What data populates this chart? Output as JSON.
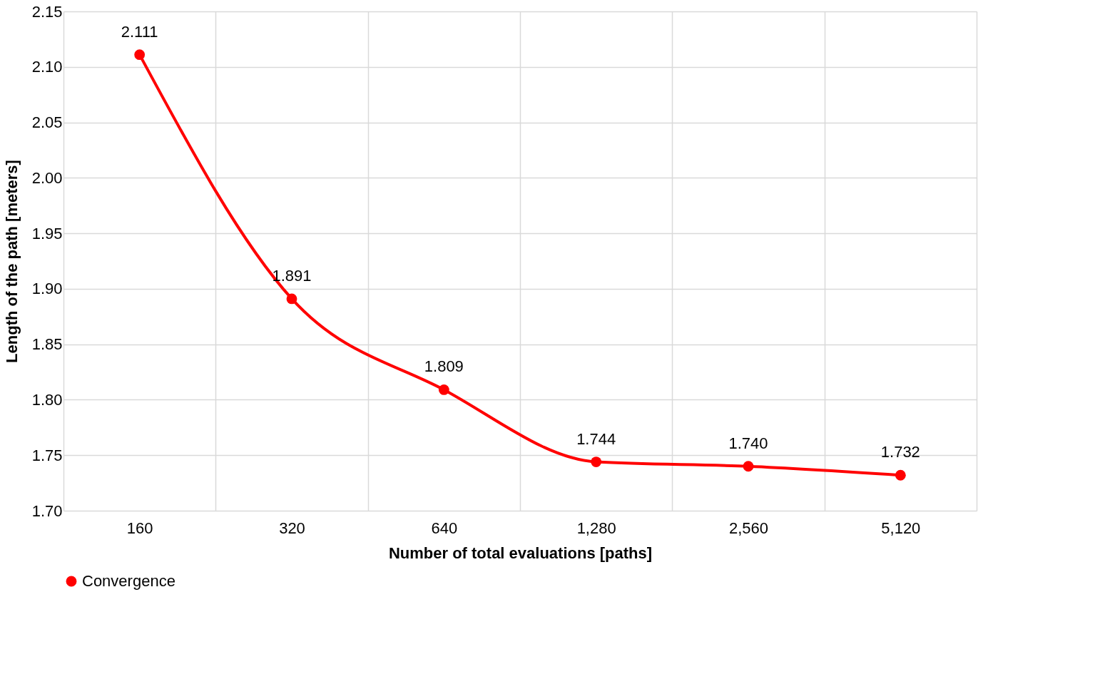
{
  "chart_data": {
    "type": "line",
    "xlabel": "Number of total evaluations [paths]",
    "ylabel": "Length of the path [meters]",
    "categories": [
      "160",
      "320",
      "640",
      "1,280",
      "2,560",
      "5,120"
    ],
    "series": [
      {
        "name": "Convergence",
        "color": "#ff0000",
        "values": [
          2.111,
          1.891,
          1.809,
          1.744,
          1.74,
          1.732
        ],
        "value_labels": [
          "2.111",
          "1.891",
          "1.809",
          "1.744",
          "1.740",
          "1.732"
        ]
      }
    ],
    "ylim": [
      1.7,
      2.15
    ],
    "yticks": [
      {
        "value": 1.7,
        "label": "1.70"
      },
      1.75,
      {
        "value": 1.8,
        "label": "1.80"
      },
      1.85,
      {
        "value": 1.9,
        "label": "1.90"
      },
      1.95,
      {
        "value": 2.0,
        "label": "2.00"
      },
      2.05,
      {
        "value": 2.1,
        "label": "2.10"
      },
      2.15
    ],
    "grid": true,
    "legend": "bottom",
    "marker": "circle",
    "line_style": "solid"
  }
}
